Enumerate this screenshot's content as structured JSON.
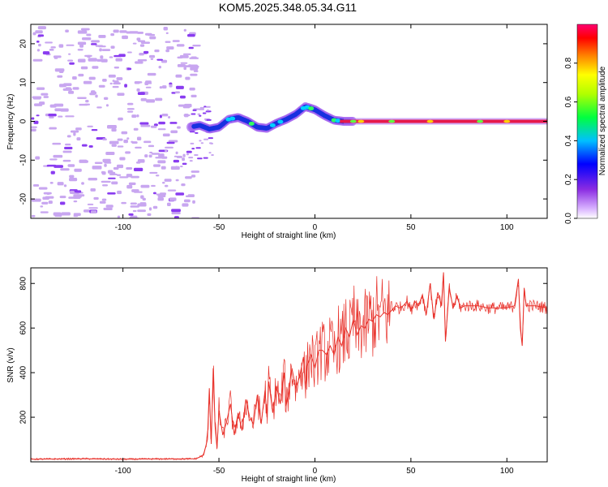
{
  "figure_title": "KOM5.2025.348.05.34.G11",
  "colors": {
    "snr_line": "#e8312a",
    "spectrum_line": "#e6194b",
    "speckle": "#c8a6f0",
    "speckle_dark": "#8a3cf0",
    "axis": "#000000"
  },
  "chart_data": [
    {
      "type": "heatmap",
      "title": "KOM5.2025.348.05.34.G11",
      "xlabel": "Height of straight line (km)",
      "ylabel": "Frequency (Hz)",
      "xlim": [
        -148,
        121
      ],
      "ylim": [
        -25,
        25
      ],
      "xticks": [
        -100,
        -50,
        0,
        50,
        100
      ],
      "yticks": [
        -20,
        -10,
        0,
        10,
        20
      ],
      "colorbar": {
        "label": "Normalized spectral amplitude",
        "range": [
          0,
          1
        ],
        "ticks": [
          "0.0",
          "0.2",
          "0.4",
          "0.6",
          "0.8"
        ],
        "colormap": "rainbow"
      },
      "description_series": {
        "noise_region_km": [
          -148,
          -63
        ],
        "signal_track": {
          "x": [
            -65,
            -60,
            -55,
            -50,
            -45,
            -40,
            -35,
            -30,
            -25,
            -20,
            -15,
            -10,
            -5,
            0,
            5,
            10,
            15,
            20,
            30,
            40,
            60,
            80,
            100,
            121
          ],
          "freq": [
            -1.5,
            -1.0,
            -2.0,
            -1.5,
            0.5,
            1.0,
            0.0,
            -1.5,
            -1.8,
            -0.5,
            0.5,
            1.8,
            3.8,
            3.0,
            1.5,
            0.3,
            0.0,
            0.0,
            0.0,
            0.0,
            0.0,
            0.0,
            0.0,
            0.0
          ]
        }
      }
    },
    {
      "type": "line",
      "xlabel": "Height of straight line (km)",
      "ylabel": "SNR (v/v)",
      "xlim": [
        -148,
        121
      ],
      "ylim": [
        0,
        870
      ],
      "xticks": [
        -100,
        -50,
        0,
        50,
        100
      ],
      "yticks": [
        200,
        400,
        600,
        800
      ],
      "series": [
        {
          "name": "SNR",
          "x": [
            -148,
            -120,
            -100,
            -80,
            -70,
            -62,
            -58,
            -56,
            -55,
            -54,
            -53,
            -52,
            -51,
            -50,
            -48,
            -46,
            -44,
            -42,
            -40,
            -38,
            -36,
            -34,
            -32,
            -30,
            -28,
            -26,
            -25,
            -24,
            -22,
            -20,
            -18,
            -16,
            -15,
            -14,
            -12,
            -10,
            -8,
            -6,
            -5,
            -4,
            -2,
            0,
            2,
            4,
            6,
            8,
            10,
            12,
            14,
            16,
            18,
            20,
            22,
            24,
            26,
            28,
            30,
            32,
            34,
            36,
            38,
            40,
            42,
            44,
            46,
            48,
            50,
            52,
            54,
            56,
            58,
            60,
            62,
            64,
            66,
            67,
            68,
            70,
            72,
            74,
            76,
            78,
            80,
            85,
            90,
            95,
            100,
            104,
            106,
            107,
            108,
            109,
            110,
            115,
            121
          ],
          "values": [
            12,
            14,
            12,
            13,
            13,
            14,
            30,
            100,
            330,
            80,
            420,
            160,
            60,
            230,
            120,
            180,
            260,
            120,
            220,
            140,
            280,
            200,
            170,
            300,
            170,
            320,
            200,
            360,
            220,
            340,
            260,
            400,
            250,
            300,
            420,
            330,
            380,
            470,
            330,
            430,
            480,
            420,
            500,
            500,
            480,
            520,
            480,
            560,
            520,
            600,
            560,
            640,
            570,
            610,
            600,
            640,
            630,
            660,
            650,
            670,
            660,
            680,
            700,
            690,
            700,
            720,
            680,
            720,
            700,
            750,
            660,
            800,
            640,
            760,
            700,
            850,
            540,
            780,
            690,
            740,
            690,
            700,
            700,
            700,
            690,
            690,
            690,
            700,
            820,
            600,
            520,
            780,
            700,
            700,
            690
          ]
        }
      ]
    }
  ]
}
